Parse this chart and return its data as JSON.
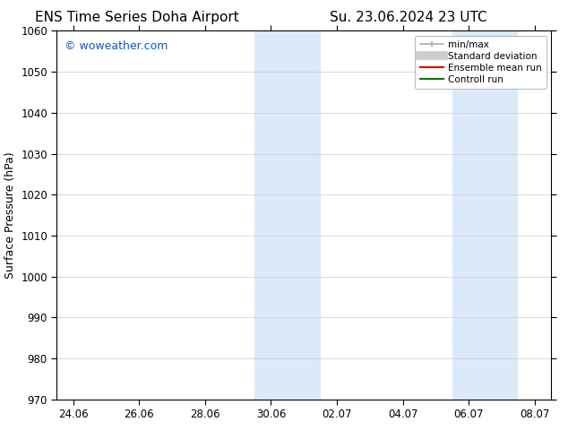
{
  "title_left": "ENS Time Series Doha Airport",
  "title_right": "Su. 23.06.2024 23 UTC",
  "ylabel": "Surface Pressure (hPa)",
  "watermark": "© woweather.com",
  "watermark_color": "#1155cc",
  "bg_color": "#ffffff",
  "ylim": [
    970,
    1060
  ],
  "yticks": [
    970,
    980,
    990,
    1000,
    1010,
    1020,
    1030,
    1040,
    1050,
    1060
  ],
  "xtick_labels": [
    "24.06",
    "26.06",
    "28.06",
    "30.06",
    "02.07",
    "04.07",
    "06.07",
    "08.07"
  ],
  "xtick_positions": [
    0,
    2,
    4,
    6,
    8,
    10,
    12,
    14
  ],
  "xlim": [
    -0.5,
    14.5
  ],
  "shaded_bands": [
    {
      "x_start": 5.5,
      "x_end": 7.5
    },
    {
      "x_start": 11.5,
      "x_end": 13.5
    }
  ],
  "shaded_color": "#daeaf8",
  "legend_items": [
    {
      "label": "min/max",
      "color": "#aaaaaa",
      "lw": 1.2
    },
    {
      "label": "Standard deviation",
      "color": "#cccccc",
      "lw": 7
    },
    {
      "label": "Ensemble mean run",
      "color": "#dd0000",
      "lw": 1.5
    },
    {
      "label": "Controll run",
      "color": "#007700",
      "lw": 1.5
    }
  ],
  "title_fontsize": 11,
  "axis_label_fontsize": 9,
  "tick_fontsize": 8.5,
  "legend_fontsize": 7.5,
  "watermark_fontsize": 9
}
